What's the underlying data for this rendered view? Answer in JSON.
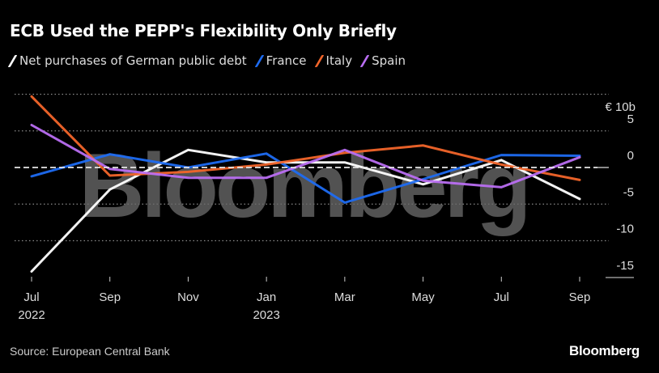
{
  "chart_data": {
    "type": "line",
    "title": "ECB Used the PEPP's Flexibility Only Briefly",
    "ylabel": "€ 10b",
    "xlabel": "",
    "ylim": [
      -16.5,
      10
    ],
    "yticks": [
      {
        "value": 5,
        "label": "5"
      },
      {
        "value": 0,
        "label": "0"
      },
      {
        "value": -5,
        "label": "-5"
      },
      {
        "value": -10,
        "label": "-10"
      },
      {
        "value": -15,
        "label": "-15"
      }
    ],
    "unit_label": "€ 10b",
    "gridlines": [
      10,
      5,
      -5,
      -10
    ],
    "zero_line": true,
    "categories": [
      "Jul 2022",
      "Sep 2022",
      "Nov 2022",
      "Jan 2023",
      "Mar 2023",
      "May 2023",
      "Jul 2023",
      "Sep 2023"
    ],
    "xticks": [
      {
        "label": "Jul",
        "sub": "2022"
      },
      {
        "label": "Sep",
        "sub": ""
      },
      {
        "label": "Nov",
        "sub": ""
      },
      {
        "label": "Jan",
        "sub": "2023"
      },
      {
        "label": "Mar",
        "sub": ""
      },
      {
        "label": "May",
        "sub": ""
      },
      {
        "label": "Jul",
        "sub": ""
      },
      {
        "label": "Sep",
        "sub": ""
      }
    ],
    "series": [
      {
        "name": "Net purchases of German public debt",
        "color": "#ffffff",
        "values": [
          -14.2,
          -3.0,
          2.4,
          0.7,
          0.7,
          -2.3,
          1.0,
          -4.3
        ]
      },
      {
        "name": "France",
        "color": "#1e6cf2",
        "values": [
          -1.2,
          1.8,
          0.0,
          1.9,
          -4.8,
          -1.6,
          1.7,
          1.6
        ]
      },
      {
        "name": "Italy",
        "color": "#f2652a",
        "values": [
          9.7,
          -1.1,
          -0.6,
          0.4,
          2.0,
          3.0,
          0.4,
          -1.7
        ]
      },
      {
        "name": "Spain",
        "color": "#b96ef2",
        "values": [
          5.8,
          -0.2,
          -1.4,
          -1.4,
          2.4,
          -1.8,
          -2.7,
          1.4
        ]
      }
    ],
    "legend_position": "top-left"
  },
  "footer": {
    "source": "Source: European Central Bank",
    "brand": "Bloomberg"
  },
  "watermark": "Bloomberg"
}
